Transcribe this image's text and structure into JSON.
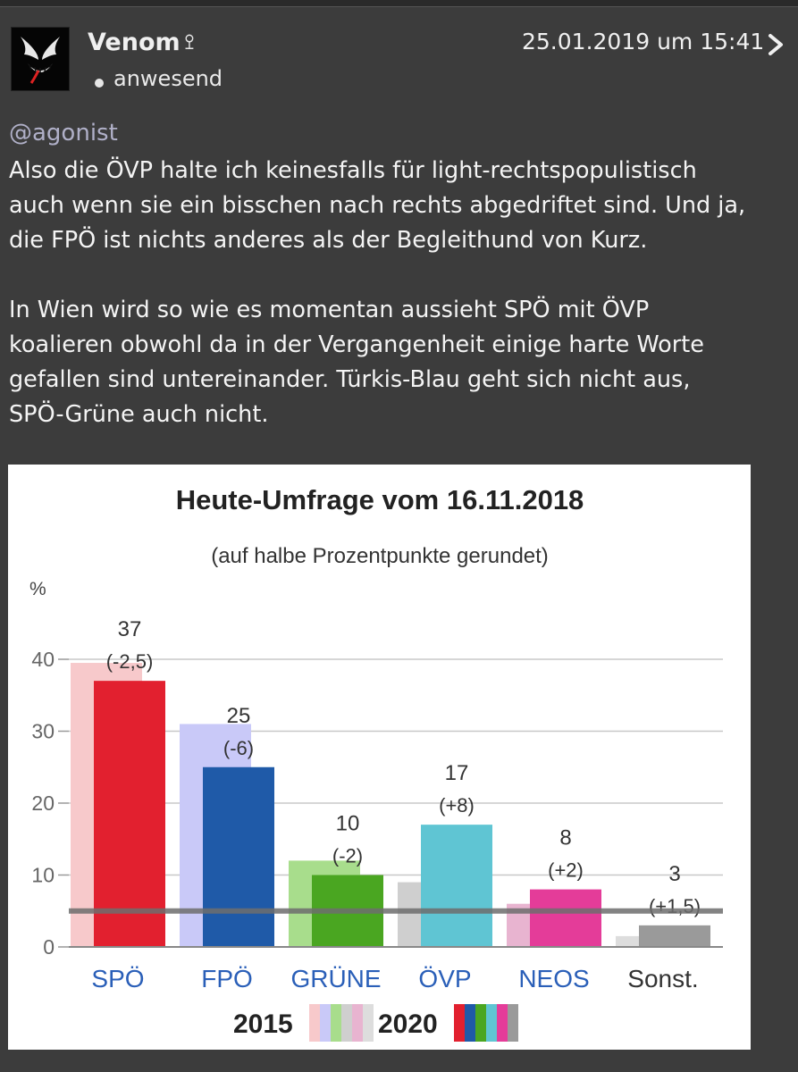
{
  "post": {
    "username": "Venom",
    "user_badge": "ꔌ",
    "status": "anwesend",
    "timestamp": "25.01.2019 um 15:41",
    "mention": "@agonist",
    "paragraph_1_lines": [
      "Also die ÖVP halte ich keinesfalls für light-rechtspopulistisch",
      "auch wenn sie ein bisschen nach rechts abgedriftet sind. Und ja,",
      "die FPÖ ist nichts anderes als der Begleithund von Kurz."
    ],
    "paragraph_2_lines": [
      "In Wien wird so wie es momentan aussieht SPÖ mit ÖVP",
      "koalieren obwohl da in der Vergangenheit einige harte Worte",
      "gefallen sind untereinander. Türkis-Blau geht sich nicht aus,",
      "SPÖ-Grüne auch nicht."
    ]
  },
  "icons": {
    "avatar": "venom-avatar",
    "status": "dot-icon",
    "chevron": "chevron-right-icon"
  },
  "colors": {
    "background": "#3c3c3c",
    "mention": "#b0b0c8",
    "chart_bg": "#ffffff"
  },
  "chart_data": {
    "type": "bar",
    "title": "Heute-Umfrage vom 16.11.2018",
    "subtitle": "(auf halbe Prozentpunkte gerundet)",
    "ylabel": "%",
    "ylim": [
      0,
      45
    ],
    "yticks": [
      0,
      10,
      20,
      30,
      40
    ],
    "threshold": 5,
    "categories": [
      "SPÖ",
      "FPÖ",
      "GRÜNE",
      "ÖVP",
      "NEOS",
      "Sonst."
    ],
    "series": [
      {
        "name": "2015",
        "values": [
          39.5,
          31,
          12,
          9,
          6,
          1.5
        ],
        "colors": [
          "#f7c9cb",
          "#c9c9f8",
          "#a8dd8c",
          "#cfcfcf",
          "#e8b4d0",
          "#dddddd"
        ]
      },
      {
        "name": "2020",
        "values": [
          37,
          25,
          10,
          17,
          8,
          3
        ],
        "colors": [
          "#e2202f",
          "#1f5aa8",
          "#4aa621",
          "#5fc5d3",
          "#e43c99",
          "#9a9a9a"
        ]
      }
    ],
    "value_labels": [
      "37",
      "25",
      "10",
      "17",
      "8",
      "3"
    ],
    "change_labels": [
      "(-2,5)",
      "(-6)",
      "(-2)",
      "(+8)",
      "(+2)",
      "(+1,5)"
    ],
    "category_colors": [
      "#2a5fb8",
      "#2a5fb8",
      "#2a5fb8",
      "#2a5fb8",
      "#2a5fb8",
      "#333333"
    ],
    "legend": {
      "label_2015": "2015",
      "label_2020": "2020",
      "placement": "bottom-center"
    }
  }
}
